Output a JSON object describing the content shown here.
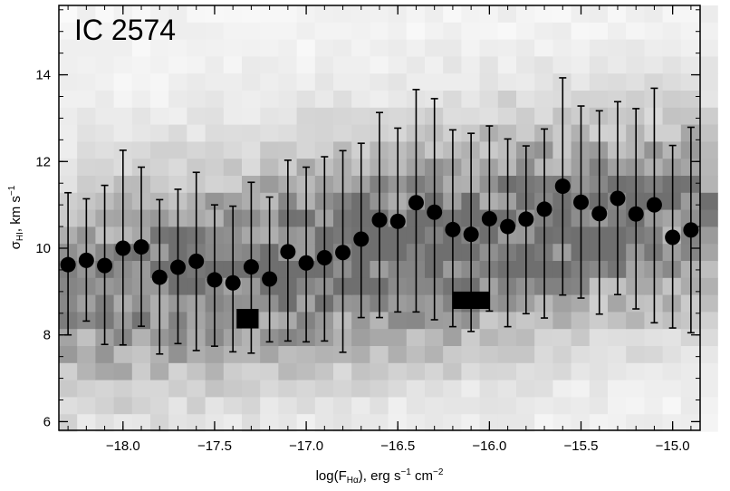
{
  "chart_data": {
    "type": "scatter",
    "title": "IC 2574",
    "xlabel": "log(F_Hα), erg s⁻¹ cm⁻²",
    "ylabel": "σ_HI, km s⁻¹",
    "xlim": [
      -18.35,
      -14.85
    ],
    "ylim": [
      5.8,
      15.6
    ],
    "x_ticks": [
      -18.0,
      -17.5,
      -17.0,
      -16.5,
      -16.0,
      -15.5,
      -15.0
    ],
    "x_tick_labels": [
      "−18.0",
      "−17.5",
      "−17.0",
      "−16.5",
      "−16.0",
      "−15.5",
      "−15.0"
    ],
    "y_ticks": [
      6,
      8,
      10,
      12,
      14
    ],
    "y_tick_labels": [
      "6",
      "8",
      "10",
      "12",
      "14"
    ],
    "x_minor_step": 0.1,
    "y_minor_step": 0.5,
    "grid": false,
    "legend": "none",
    "background": "2D histogram (grayscale density of pixels)",
    "series": [
      {
        "marker": "filled-circle",
        "color": "#000000",
        "x": [
          -18.3,
          -18.2,
          -18.1,
          -18.0,
          -17.9,
          -17.8,
          -17.7,
          -17.6,
          -17.5,
          -17.4,
          -17.3,
          -17.2,
          -17.1,
          -17.0,
          -16.9,
          -16.8,
          -16.7,
          -16.6,
          -16.5,
          -16.4,
          -16.3,
          -16.2,
          -16.1,
          -16.0,
          -15.9,
          -15.8,
          -15.7,
          -15.6,
          -15.5,
          -15.4,
          -15.3,
          -15.2,
          -15.1,
          -15.0,
          -14.9
        ],
        "y": [
          9.62,
          9.72,
          9.6,
          10.0,
          10.03,
          9.33,
          9.56,
          9.7,
          9.27,
          9.2,
          9.57,
          9.29,
          9.92,
          9.66,
          9.78,
          9.9,
          10.21,
          10.65,
          10.62,
          11.05,
          10.83,
          10.43,
          10.32,
          10.68,
          10.5,
          10.67,
          10.9,
          11.43,
          11.06,
          10.8,
          11.15,
          10.79,
          11.0,
          10.25,
          10.42
        ],
        "y_err_low": [
          8.0,
          8.32,
          7.78,
          7.77,
          8.2,
          7.56,
          7.8,
          7.64,
          7.74,
          7.61,
          7.58,
          7.84,
          7.86,
          7.84,
          7.86,
          7.6,
          8.4,
          8.4,
          8.53,
          8.53,
          8.35,
          8.19,
          8.08,
          8.55,
          8.19,
          8.49,
          8.39,
          8.92,
          8.85,
          8.48,
          8.93,
          8.6,
          8.28,
          8.16,
          8.05
        ],
        "y_err_high": [
          11.28,
          11.14,
          11.45,
          12.26,
          11.87,
          11.12,
          11.36,
          11.75,
          11.0,
          10.97,
          11.52,
          11.18,
          12.03,
          11.87,
          12.11,
          12.25,
          12.42,
          13.13,
          12.77,
          13.66,
          13.45,
          12.73,
          12.65,
          12.82,
          12.52,
          12.36,
          12.75,
          13.93,
          13.28,
          13.17,
          13.38,
          13.22,
          13.69,
          12.37,
          12.79
        ]
      }
    ]
  }
}
